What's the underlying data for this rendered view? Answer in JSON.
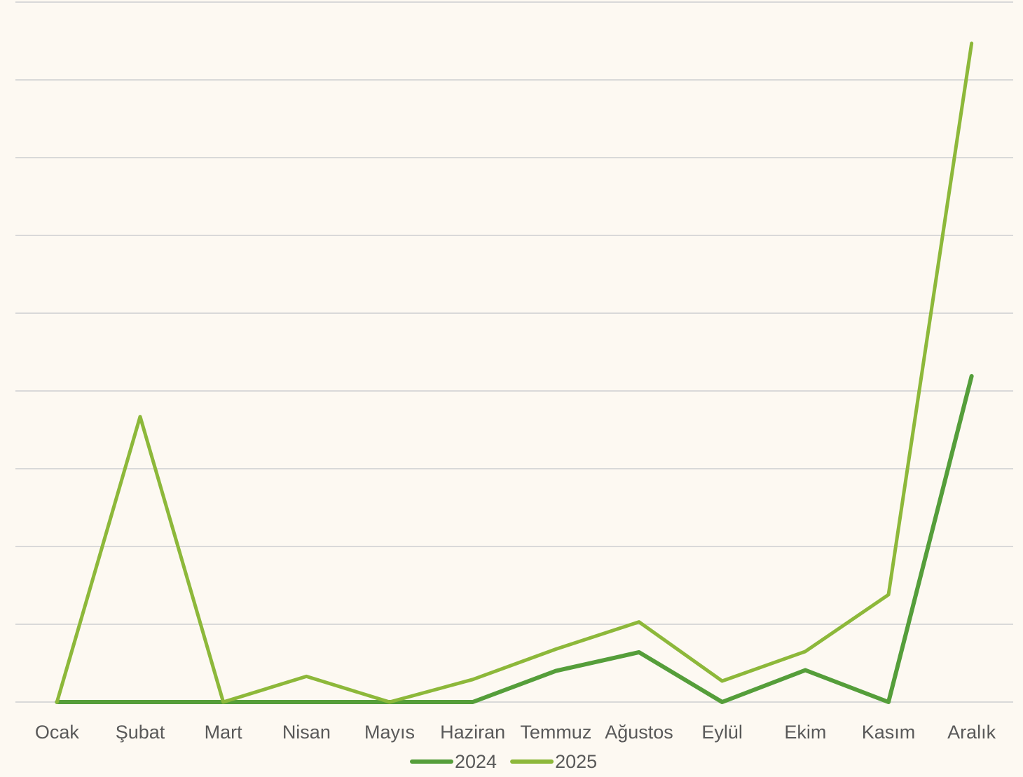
{
  "chart_data": {
    "type": "line",
    "categories": [
      "Ocak",
      "Şubat",
      "Mart",
      "Nisan",
      "Mayıs",
      "Haziran",
      "Temmuz",
      "Ağustos",
      "Eylül",
      "Ekim",
      "Kasım",
      "Aralık"
    ],
    "series": [
      {
        "name": "2024",
        "color": "#559e3a",
        "values": [
          0,
          0,
          0,
          0,
          0,
          0,
          0.4,
          0.64,
          0,
          0.41,
          0,
          4.19
        ]
      },
      {
        "name": "2025",
        "color": "#8db83a",
        "values": [
          0,
          3.67,
          0,
          0.33,
          0,
          0.29,
          0.68,
          1.03,
          0.27,
          0.65,
          1.38,
          8.47
        ]
      }
    ],
    "ylim": [
      0,
      9
    ],
    "yticks": [
      0,
      1,
      2,
      3,
      4,
      5,
      6,
      7,
      8,
      9
    ],
    "grid": true,
    "legend": "bottom"
  }
}
